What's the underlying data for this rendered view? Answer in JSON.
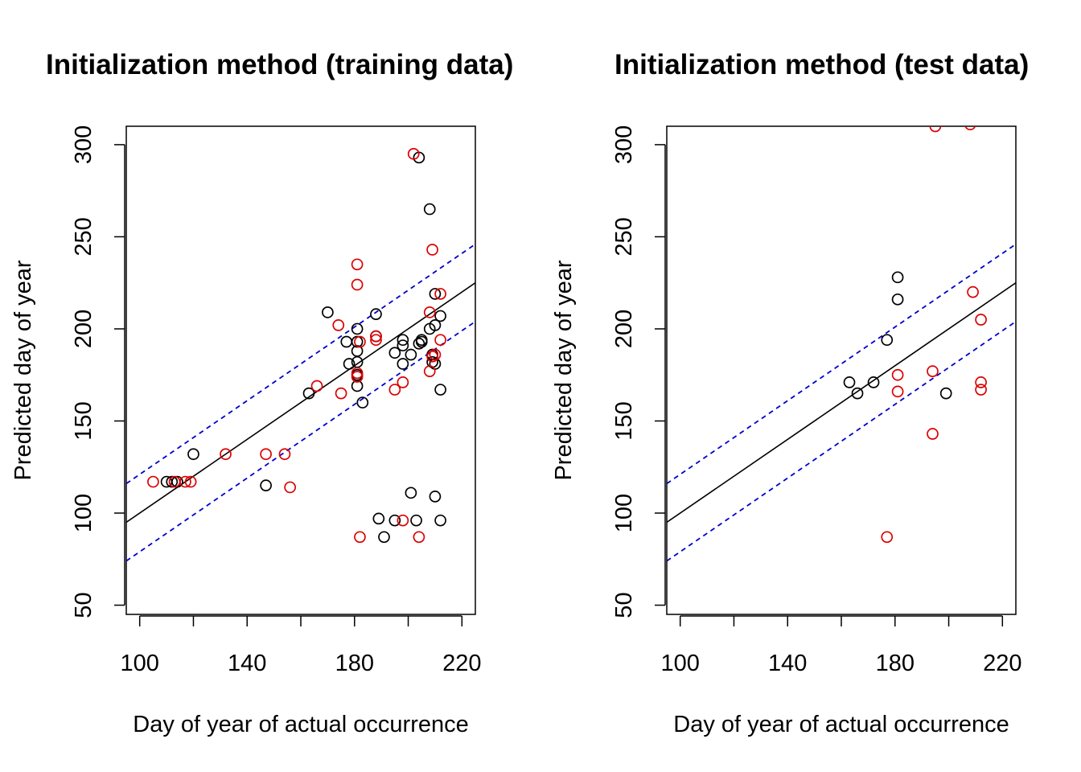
{
  "chart_data": [
    {
      "type": "scatter",
      "title": "Initialization method (training data)",
      "xlabel": "Day of year of actual occurrence",
      "ylabel": "Predicted day of year",
      "xlim": [
        95,
        225
      ],
      "ylim": [
        45,
        310
      ],
      "xticks": [
        100,
        120,
        140,
        160,
        180,
        200,
        220
      ],
      "xtick_labels": [
        "100",
        "",
        "140",
        "",
        "180",
        "",
        "220"
      ],
      "yticks": [
        50,
        100,
        150,
        200,
        250,
        300
      ],
      "grid": false,
      "colors": {
        "black": "#000000",
        "red": "#dd0000",
        "blue": "#0000cc"
      },
      "lines": [
        {
          "style": "solid",
          "color": "black",
          "intercept": 0,
          "slope": 1
        },
        {
          "style": "dashed",
          "color": "blue",
          "intercept": 21,
          "slope": 1
        },
        {
          "style": "dashed",
          "color": "blue",
          "intercept": -21,
          "slope": 1
        }
      ],
      "series": [
        {
          "color": "black",
          "points": [
            [
              110,
              117
            ],
            [
              112,
              117
            ],
            [
              114,
              117
            ],
            [
              120,
              132
            ],
            [
              147,
              115
            ],
            [
              163,
              165
            ],
            [
              170,
              209
            ],
            [
              177,
              193
            ],
            [
              178,
              181
            ],
            [
              181,
              200
            ],
            [
              181,
              193
            ],
            [
              181,
              188
            ],
            [
              181,
              182
            ],
            [
              181,
              175
            ],
            [
              181,
              169
            ],
            [
              183,
              160
            ],
            [
              188,
              208
            ],
            [
              188,
              196
            ],
            [
              189,
              97
            ],
            [
              191,
              87
            ],
            [
              195,
              187
            ],
            [
              195,
              96
            ],
            [
              198,
              194
            ],
            [
              198,
              191
            ],
            [
              198,
              181
            ],
            [
              201,
              186
            ],
            [
              201,
              111
            ],
            [
              203,
              96
            ],
            [
              204,
              293
            ],
            [
              204,
              192
            ],
            [
              205,
              194
            ],
            [
              205,
              193
            ],
            [
              208,
              265
            ],
            [
              208,
              200
            ],
            [
              209,
              186
            ],
            [
              209,
              182
            ],
            [
              210,
              219
            ],
            [
              210,
              202
            ],
            [
              210,
              181
            ],
            [
              210,
              109
            ],
            [
              212,
              207
            ],
            [
              212,
              167
            ],
            [
              212,
              96
            ]
          ]
        },
        {
          "color": "red",
          "points": [
            [
              105,
              117
            ],
            [
              113,
              117
            ],
            [
              117,
              117
            ],
            [
              119,
              117
            ],
            [
              132,
              132
            ],
            [
              147,
              132
            ],
            [
              154,
              132
            ],
            [
              156,
              114
            ],
            [
              166,
              169
            ],
            [
              174,
              202
            ],
            [
              175,
              165
            ],
            [
              181,
              235
            ],
            [
              181,
              224
            ],
            [
              181,
              176
            ],
            [
              181,
              174
            ],
            [
              182,
              193
            ],
            [
              182,
              87
            ],
            [
              188,
              196
            ],
            [
              188,
              194
            ],
            [
              195,
              167
            ],
            [
              198,
              171
            ],
            [
              198,
              96
            ],
            [
              202,
              295
            ],
            [
              204,
              87
            ],
            [
              208,
              209
            ],
            [
              208,
              177
            ],
            [
              209,
              243
            ],
            [
              209,
              185
            ],
            [
              210,
              186
            ],
            [
              212,
              219
            ],
            [
              212,
              194
            ]
          ]
        }
      ]
    },
    {
      "type": "scatter",
      "title": "Initialization method (test data)",
      "xlabel": "Day of year of actual occurrence",
      "ylabel": "Predicted day of year",
      "xlim": [
        95,
        225
      ],
      "ylim": [
        45,
        310
      ],
      "xticks": [
        100,
        120,
        140,
        160,
        180,
        200,
        220
      ],
      "xtick_labels": [
        "100",
        "",
        "140",
        "",
        "180",
        "",
        "220"
      ],
      "yticks": [
        50,
        100,
        150,
        200,
        250,
        300
      ],
      "grid": false,
      "colors": {
        "black": "#000000",
        "red": "#dd0000",
        "blue": "#0000cc"
      },
      "lines": [
        {
          "style": "solid",
          "color": "black",
          "intercept": 0,
          "slope": 1
        },
        {
          "style": "dashed",
          "color": "blue",
          "intercept": 21,
          "slope": 1
        },
        {
          "style": "dashed",
          "color": "blue",
          "intercept": -21,
          "slope": 1
        }
      ],
      "series": [
        {
          "color": "black",
          "points": [
            [
              163,
              171
            ],
            [
              166,
              165
            ],
            [
              172,
              171
            ],
            [
              177,
              194
            ],
            [
              181,
              228
            ],
            [
              181,
              216
            ],
            [
              199,
              165
            ]
          ]
        },
        {
          "color": "red",
          "points": [
            [
              177,
              87
            ],
            [
              181,
              175
            ],
            [
              181,
              166
            ],
            [
              194,
              177
            ],
            [
              194,
              143
            ],
            [
              195,
              310
            ],
            [
              208,
              311
            ],
            [
              209,
              220
            ],
            [
              212,
              205
            ],
            [
              212,
              171
            ],
            [
              212,
              167
            ]
          ]
        }
      ]
    }
  ]
}
